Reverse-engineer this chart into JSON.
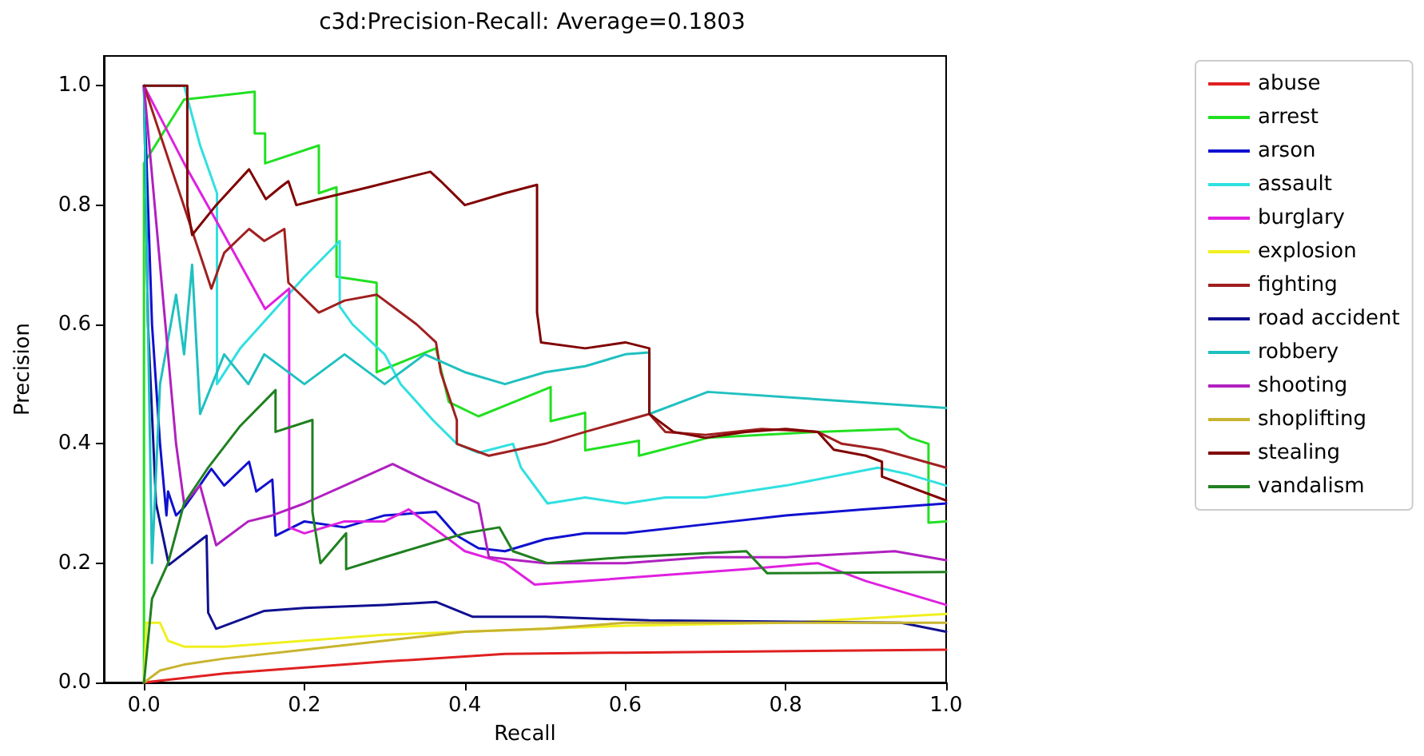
{
  "chart_data": {
    "type": "line",
    "title": "c3d:Precision-Recall: Average=0.1803",
    "xlabel": "Recall",
    "ylabel": "Precision",
    "xlim": [
      -0.05,
      1.0
    ],
    "ylim": [
      0,
      1.05
    ],
    "xticks": [
      {
        "value": 0,
        "label": "0.0"
      },
      {
        "value": 0.2,
        "label": "0.2"
      },
      {
        "value": 0.4,
        "label": "0.4"
      },
      {
        "value": 0.6,
        "label": "0.6"
      },
      {
        "value": 0.8,
        "label": "0.8"
      },
      {
        "value": 1,
        "label": "1.0"
      }
    ],
    "yticks": [
      {
        "value": 0,
        "label": "0.0"
      },
      {
        "value": 0.2,
        "label": "0.2"
      },
      {
        "value": 0.4,
        "label": "0.4"
      },
      {
        "value": 0.6,
        "label": "0.6"
      },
      {
        "value": 0.8,
        "label": "0.8"
      },
      {
        "value": 1,
        "label": "1.0"
      }
    ],
    "grid": false,
    "legend": "right",
    "marker": "none",
    "line_style": "solid",
    "series": [
      {
        "name": "abuse",
        "color": "#e02020",
        "x": [
          0,
          0.1,
          0.2,
          0.3,
          0.45,
          0.6,
          1.0
        ],
        "values": [
          0,
          0.015,
          0.025,
          0.035,
          0.048,
          0.05,
          0.055
        ]
      },
      {
        "name": "arrest",
        "color": "#22e022",
        "x": [
          0,
          0,
          0.05,
          0.138,
          0.138,
          0.151,
          0.151,
          0.218,
          0.218,
          0.24,
          0.24,
          0.29,
          0.29,
          0.364,
          0.38,
          0.417,
          0.507,
          0.507,
          0.55,
          0.55,
          0.617,
          0.617,
          0.703,
          0.84,
          0.94,
          0.955,
          0.978,
          0.978,
          1.0
        ],
        "values": [
          0,
          0.87,
          0.977,
          0.99,
          0.92,
          0.92,
          0.87,
          0.9,
          0.82,
          0.83,
          0.68,
          0.67,
          0.52,
          0.56,
          0.47,
          0.446,
          0.495,
          0.438,
          0.452,
          0.389,
          0.405,
          0.38,
          0.41,
          0.42,
          0.425,
          0.41,
          0.4,
          0.268,
          0.27
        ]
      },
      {
        "name": "arson",
        "color": "#1010d0",
        "x": [
          0,
          0.01,
          0.02,
          0.028,
          0.03,
          0.04,
          0.051,
          0.084,
          0.1,
          0.131,
          0.14,
          0.16,
          0.164,
          0.2,
          0.25,
          0.3,
          0.364,
          0.39,
          0.417,
          0.45,
          0.5,
          0.55,
          0.6,
          0.7,
          0.8,
          0.896,
          1.0
        ],
        "values": [
          1.0,
          0.6,
          0.4,
          0.28,
          0.32,
          0.28,
          0.295,
          0.358,
          0.33,
          0.37,
          0.32,
          0.34,
          0.246,
          0.27,
          0.26,
          0.28,
          0.286,
          0.246,
          0.225,
          0.22,
          0.24,
          0.25,
          0.25,
          0.265,
          0.28,
          0.29,
          0.3
        ]
      },
      {
        "name": "assault",
        "color": "#30e0e0",
        "x": [
          0,
          0.05,
          0.07,
          0.091,
          0.091,
          0.12,
          0.16,
          0.2,
          0.244,
          0.244,
          0.26,
          0.3,
          0.32,
          0.34,
          0.36,
          0.39,
          0.417,
          0.46,
          0.47,
          0.503,
          0.55,
          0.6,
          0.65,
          0.7,
          0.8,
          0.915,
          0.95,
          1.0
        ],
        "values": [
          1.0,
          1.0,
          0.9,
          0.82,
          0.5,
          0.56,
          0.62,
          0.68,
          0.74,
          0.63,
          0.6,
          0.55,
          0.5,
          0.47,
          0.44,
          0.4,
          0.385,
          0.4,
          0.36,
          0.3,
          0.31,
          0.3,
          0.31,
          0.31,
          0.33,
          0.36,
          0.35,
          0.33
        ]
      },
      {
        "name": "burglary",
        "color": "#e020e0",
        "x": [
          0,
          0.05,
          0.1,
          0.151,
          0.181,
          0.181,
          0.2,
          0.25,
          0.3,
          0.33,
          0.36,
          0.4,
          0.45,
          0.487,
          0.55,
          0.65,
          0.75,
          0.84,
          0.9,
          1.0
        ],
        "values": [
          1.0,
          0.87,
          0.75,
          0.626,
          0.66,
          0.26,
          0.25,
          0.27,
          0.27,
          0.29,
          0.26,
          0.22,
          0.2,
          0.164,
          0.17,
          0.18,
          0.19,
          0.2,
          0.17,
          0.13
        ]
      },
      {
        "name": "explosion",
        "color": "#f0f020",
        "x": [
          0,
          0.003,
          0.02,
          0.03,
          0.05,
          0.1,
          0.2,
          0.3,
          0.4,
          0.5,
          0.6,
          0.8,
          1.0
        ],
        "values": [
          0,
          0.1,
          0.1,
          0.07,
          0.06,
          0.06,
          0.07,
          0.08,
          0.085,
          0.09,
          0.095,
          0.1,
          0.115
        ]
      },
      {
        "name": "fighting",
        "color": "#a02020",
        "x": [
          0,
          0.084,
          0.1,
          0.131,
          0.15,
          0.175,
          0.18,
          0.218,
          0.25,
          0.29,
          0.32,
          0.34,
          0.364,
          0.37,
          0.39,
          0.39,
          0.43,
          0.5,
          0.55,
          0.63,
          0.65,
          0.7,
          0.77,
          0.84,
          0.87,
          0.92,
          1.0
        ],
        "values": [
          1.0,
          0.66,
          0.72,
          0.76,
          0.74,
          0.76,
          0.67,
          0.62,
          0.64,
          0.65,
          0.62,
          0.6,
          0.57,
          0.52,
          0.44,
          0.4,
          0.38,
          0.4,
          0.42,
          0.45,
          0.42,
          0.415,
          0.425,
          0.42,
          0.4,
          0.39,
          0.36
        ]
      },
      {
        "name": "road accident",
        "color": "#101090",
        "x": [
          0,
          0.005,
          0.015,
          0.031,
          0.078,
          0.08,
          0.09,
          0.15,
          0.2,
          0.3,
          0.364,
          0.41,
          0.5,
          0.63,
          0.944,
          1.0
        ],
        "values": [
          1.0,
          0.6,
          0.3,
          0.197,
          0.246,
          0.117,
          0.09,
          0.12,
          0.125,
          0.13,
          0.135,
          0.11,
          0.11,
          0.104,
          0.1,
          0.085
        ]
      },
      {
        "name": "robbery",
        "color": "#20c0c0",
        "x": [
          0,
          0.01,
          0.02,
          0.04,
          0.05,
          0.06,
          0.07,
          0.1,
          0.13,
          0.15,
          0.2,
          0.25,
          0.3,
          0.35,
          0.4,
          0.45,
          0.5,
          0.55,
          0.6,
          0.63,
          0.63,
          0.703,
          1.0
        ],
        "values": [
          1.0,
          0.2,
          0.5,
          0.65,
          0.55,
          0.7,
          0.45,
          0.55,
          0.5,
          0.55,
          0.5,
          0.55,
          0.5,
          0.55,
          0.52,
          0.5,
          0.52,
          0.53,
          0.55,
          0.553,
          0.45,
          0.487,
          0.46
        ]
      },
      {
        "name": "shooting",
        "color": "#b020c0",
        "x": [
          0,
          0.02,
          0.04,
          0.05,
          0.07,
          0.09,
          0.1,
          0.13,
          0.16,
          0.2,
          0.25,
          0.31,
          0.35,
          0.4,
          0.417,
          0.43,
          0.5,
          0.6,
          0.7,
          0.8,
          0.936,
          1.0
        ],
        "values": [
          1.0,
          0.7,
          0.4,
          0.3,
          0.33,
          0.23,
          0.24,
          0.27,
          0.28,
          0.3,
          0.33,
          0.366,
          0.34,
          0.31,
          0.3,
          0.21,
          0.2,
          0.2,
          0.21,
          0.21,
          0.22,
          0.205
        ]
      },
      {
        "name": "shoplifting",
        "color": "#c8b430",
        "x": [
          0,
          0.02,
          0.05,
          0.1,
          0.2,
          0.3,
          0.4,
          0.5,
          0.6,
          0.8,
          1.0
        ],
        "values": [
          0,
          0.02,
          0.03,
          0.04,
          0.055,
          0.07,
          0.085,
          0.09,
          0.1,
          0.1,
          0.1
        ]
      },
      {
        "name": "stealing",
        "color": "#800000",
        "x": [
          0,
          0.054,
          0.054,
          0.06,
          0.09,
          0.131,
          0.152,
          0.17,
          0.18,
          0.19,
          0.218,
          0.28,
          0.357,
          0.37,
          0.4,
          0.45,
          0.49,
          0.49,
          0.495,
          0.55,
          0.6,
          0.63,
          0.63,
          0.66,
          0.7,
          0.75,
          0.8,
          0.84,
          0.86,
          0.9,
          0.92,
          0.92,
          1.0
        ],
        "values": [
          1.0,
          1.0,
          0.8,
          0.75,
          0.8,
          0.86,
          0.81,
          0.83,
          0.84,
          0.8,
          0.81,
          0.83,
          0.856,
          0.84,
          0.8,
          0.82,
          0.834,
          0.62,
          0.57,
          0.56,
          0.57,
          0.56,
          0.45,
          0.42,
          0.41,
          0.42,
          0.425,
          0.42,
          0.39,
          0.38,
          0.37,
          0.345,
          0.305
        ]
      },
      {
        "name": "vandalism",
        "color": "#208020",
        "x": [
          0,
          0.01,
          0.03,
          0.05,
          0.08,
          0.12,
          0.164,
          0.164,
          0.21,
          0.21,
          0.22,
          0.252,
          0.252,
          0.3,
          0.35,
          0.4,
          0.443,
          0.46,
          0.503,
          0.6,
          0.751,
          0.777,
          1.0
        ],
        "values": [
          0,
          0.14,
          0.2,
          0.3,
          0.36,
          0.43,
          0.49,
          0.42,
          0.44,
          0.286,
          0.2,
          0.25,
          0.19,
          0.21,
          0.23,
          0.25,
          0.26,
          0.22,
          0.2,
          0.21,
          0.22,
          0.183,
          0.185
        ]
      }
    ]
  }
}
